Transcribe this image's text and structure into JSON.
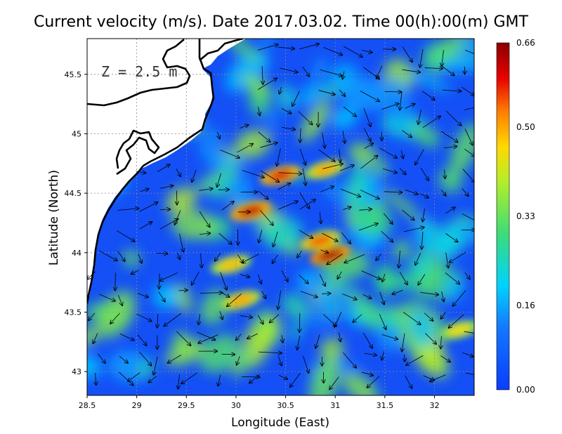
{
  "title": "Current velocity (m/s). Date 2017.03.02. Time 00(h):00(m) GMT",
  "depth_label": "Z = 2.5 m",
  "x_axis_label": "Longitude (East)",
  "y_axis_label": "Latitude (North)",
  "x_ticks": [
    "28.5",
    "29",
    "29.5",
    "30",
    "30.5",
    "31",
    "31.5",
    "32"
  ],
  "y_ticks": [
    "43",
    "43.5",
    "44",
    "44.5",
    "45",
    "45.5"
  ],
  "colorbar": {
    "labels": [
      "0.00",
      "0.16",
      "0.33",
      "0.50",
      "0.66"
    ],
    "min": 0.0,
    "max": 0.66
  },
  "colors": {
    "low": "#0a3cff",
    "mid": "#3cdc78",
    "high": "#ffd800",
    "max": "#8b0000",
    "land": "#ffffff",
    "coastline": "#000000"
  },
  "chart_data": {
    "type": "heatmap",
    "variable": "current velocity magnitude with direction vectors",
    "units": "m/s",
    "date": "2017.03.02",
    "time": "00(h):00(m) GMT",
    "depth_m": 2.5,
    "xlim": [
      28.5,
      32.4
    ],
    "ylim": [
      42.8,
      45.8
    ],
    "value_range": [
      0.0,
      0.66
    ],
    "hotspots": [
      {
        "lon": 30.15,
        "lat": 44.35,
        "value": 0.62
      },
      {
        "lon": 30.45,
        "lat": 44.65,
        "value": 0.6
      },
      {
        "lon": 30.95,
        "lat": 43.98,
        "value": 0.64
      },
      {
        "lon": 30.85,
        "lat": 44.1,
        "value": 0.55
      },
      {
        "lon": 30.05,
        "lat": 43.6,
        "value": 0.5
      },
      {
        "lon": 29.95,
        "lat": 43.9,
        "value": 0.48
      },
      {
        "lon": 32.25,
        "lat": 43.35,
        "value": 0.45
      },
      {
        "lon": 30.9,
        "lat": 44.7,
        "value": 0.5
      }
    ]
  }
}
